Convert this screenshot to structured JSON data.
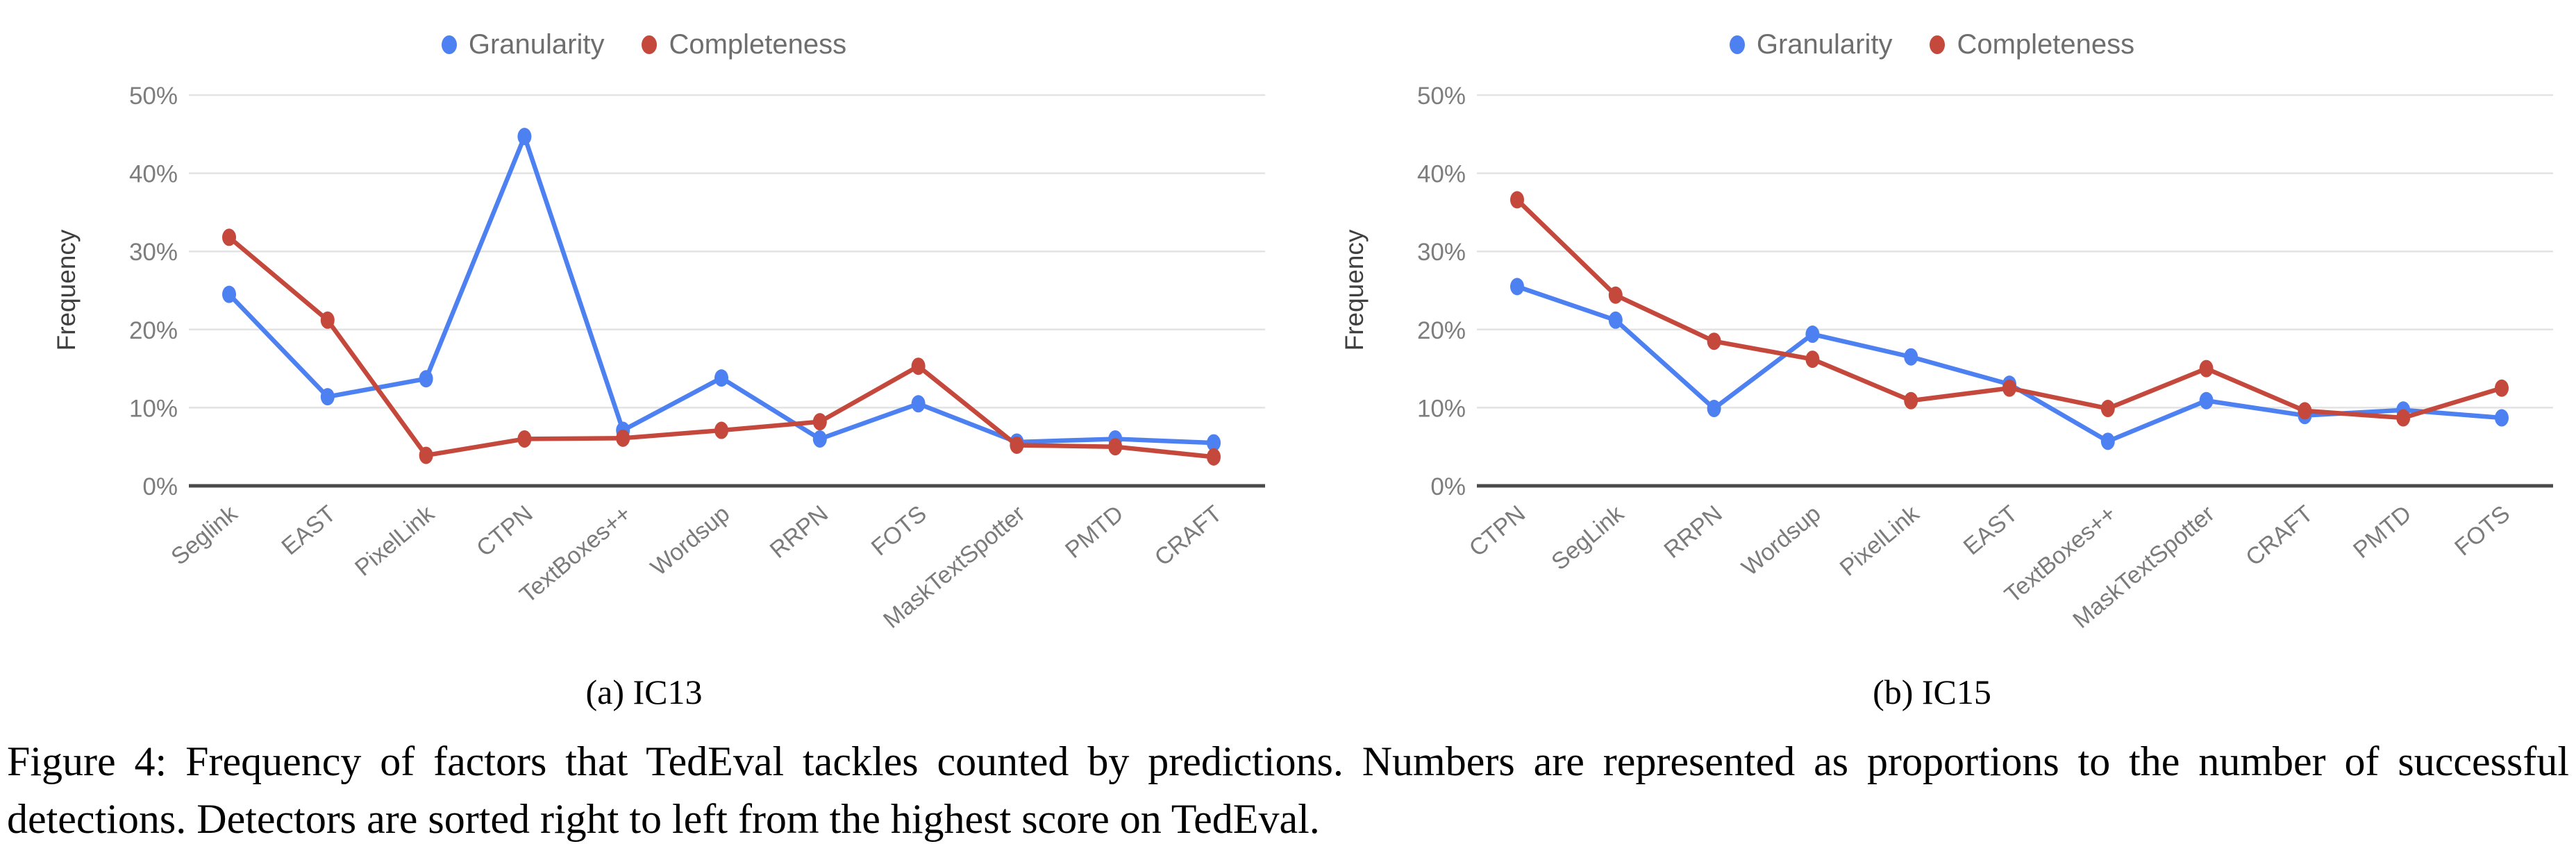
{
  "caption": "Figure 4: Frequency of factors that TedEval tackles counted by predictions. Numbers are represented as proportions to the number of successful detections. Detectors are sorted right to left from the highest score on TedEval.",
  "colors": {
    "granularity_blue": "#4d80f0",
    "completeness_red": "#c5483c",
    "gridline": "#e3e3e3",
    "axis_line": "#4a4a4a",
    "tick_text": "#7d7d7d",
    "category_text": "#7b7b7b"
  },
  "chart_data": [
    {
      "type": "line",
      "subcaption": "(a) IC13",
      "ylabel": "Frequency",
      "ylim": [
        0,
        50
      ],
      "grid": true,
      "legend_position": "top",
      "y_ticks": [
        "0%",
        "10%",
        "20%",
        "30%",
        "40%",
        "50%"
      ],
      "categories": [
        "Seglink",
        "EAST",
        "PixelLink",
        "CTPN",
        "TextBoxes++",
        "Wordsup",
        "RRPN",
        "FOTS",
        "MaskTextSpotter",
        "PMTD",
        "CRAFT"
      ],
      "series": [
        {
          "name": "Granularity",
          "color": "#4d80f0",
          "values": [
            24.5,
            11.4,
            13.7,
            44.7,
            7.1,
            13.8,
            6.0,
            10.5,
            5.6,
            6.0,
            5.5
          ]
        },
        {
          "name": "Completeness",
          "color": "#c5483c",
          "values": [
            31.8,
            21.2,
            3.9,
            6.0,
            6.1,
            7.1,
            8.2,
            15.3,
            5.2,
            5.0,
            3.7
          ]
        }
      ]
    },
    {
      "type": "line",
      "subcaption": "(b) IC15",
      "ylabel": "Frequency",
      "ylim": [
        0,
        50
      ],
      "grid": true,
      "legend_position": "top",
      "y_ticks": [
        "0%",
        "10%",
        "20%",
        "30%",
        "40%",
        "50%"
      ],
      "categories": [
        "CTPN",
        "SegLink",
        "RRPN",
        "Wordsup",
        "PixelLink",
        "EAST",
        "TextBoxes++",
        "MaskTextSpotter",
        "CRAFT",
        "PMTD",
        "FOTS"
      ],
      "series": [
        {
          "name": "Granularity",
          "color": "#4d80f0",
          "values": [
            25.5,
            21.2,
            9.9,
            19.4,
            16.5,
            13.0,
            5.7,
            10.9,
            9.0,
            9.7,
            8.7
          ]
        },
        {
          "name": "Completeness",
          "color": "#c5483c",
          "values": [
            36.6,
            24.4,
            18.5,
            16.2,
            10.9,
            12.5,
            9.9,
            15.0,
            9.6,
            8.7,
            12.5
          ]
        }
      ]
    }
  ]
}
